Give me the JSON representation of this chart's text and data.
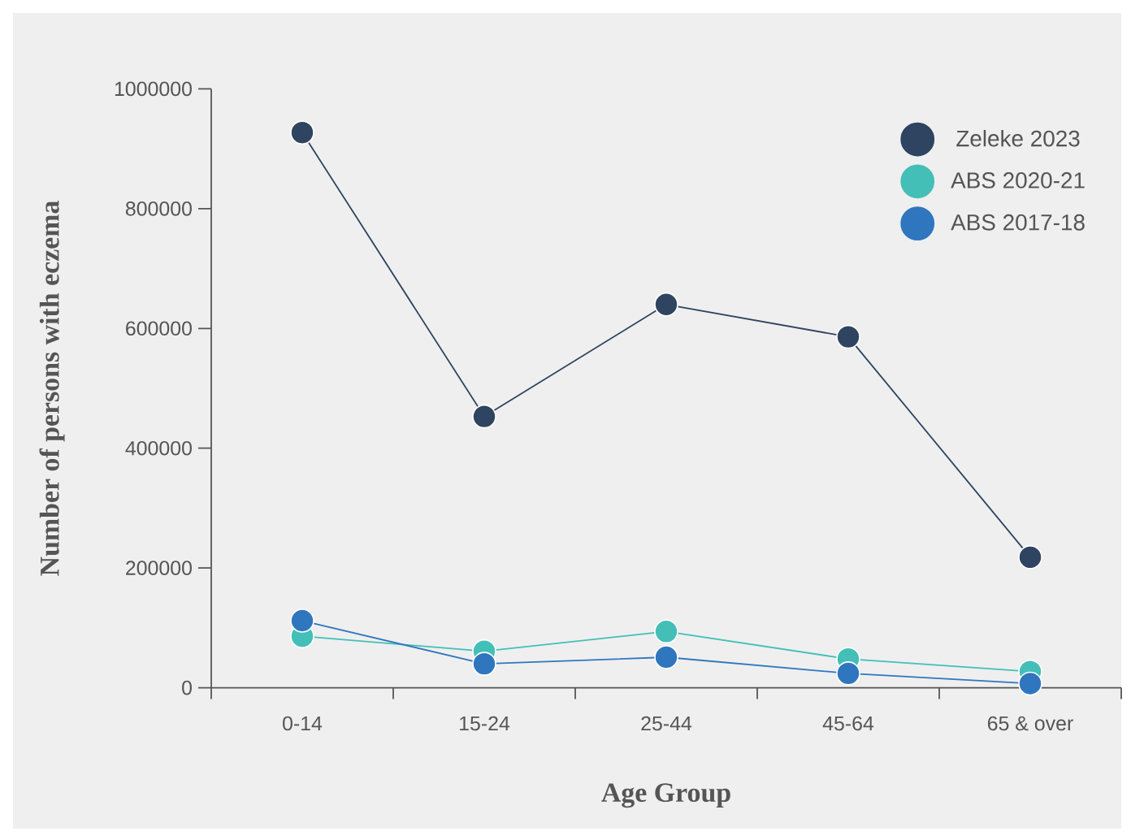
{
  "chart_data": {
    "type": "line",
    "xlabel": "Age Group",
    "ylabel": "Number of persons with eczema",
    "categories": [
      "0-14",
      "15-24",
      "25-44",
      "45-64",
      "65 & over"
    ],
    "series": [
      {
        "name": "Zeleke 2023",
        "color": "#2e4460",
        "values": [
          927000,
          453000,
          640000,
          586000,
          218000
        ]
      },
      {
        "name": "ABS 2020-21",
        "color": "#43bfb8",
        "values": [
          86000,
          61000,
          94000,
          48000,
          27000
        ]
      },
      {
        "name": "ABS 2017-18",
        "color": "#2f76bf",
        "values": [
          112000,
          40000,
          51000,
          24000,
          7000
        ]
      }
    ],
    "ylim": [
      0,
      1000000
    ],
    "yticks": [
      0,
      200000,
      400000,
      600000,
      800000,
      1000000
    ],
    "grid": false,
    "legend": "top right",
    "marker": "circle",
    "line_style": "solid"
  }
}
